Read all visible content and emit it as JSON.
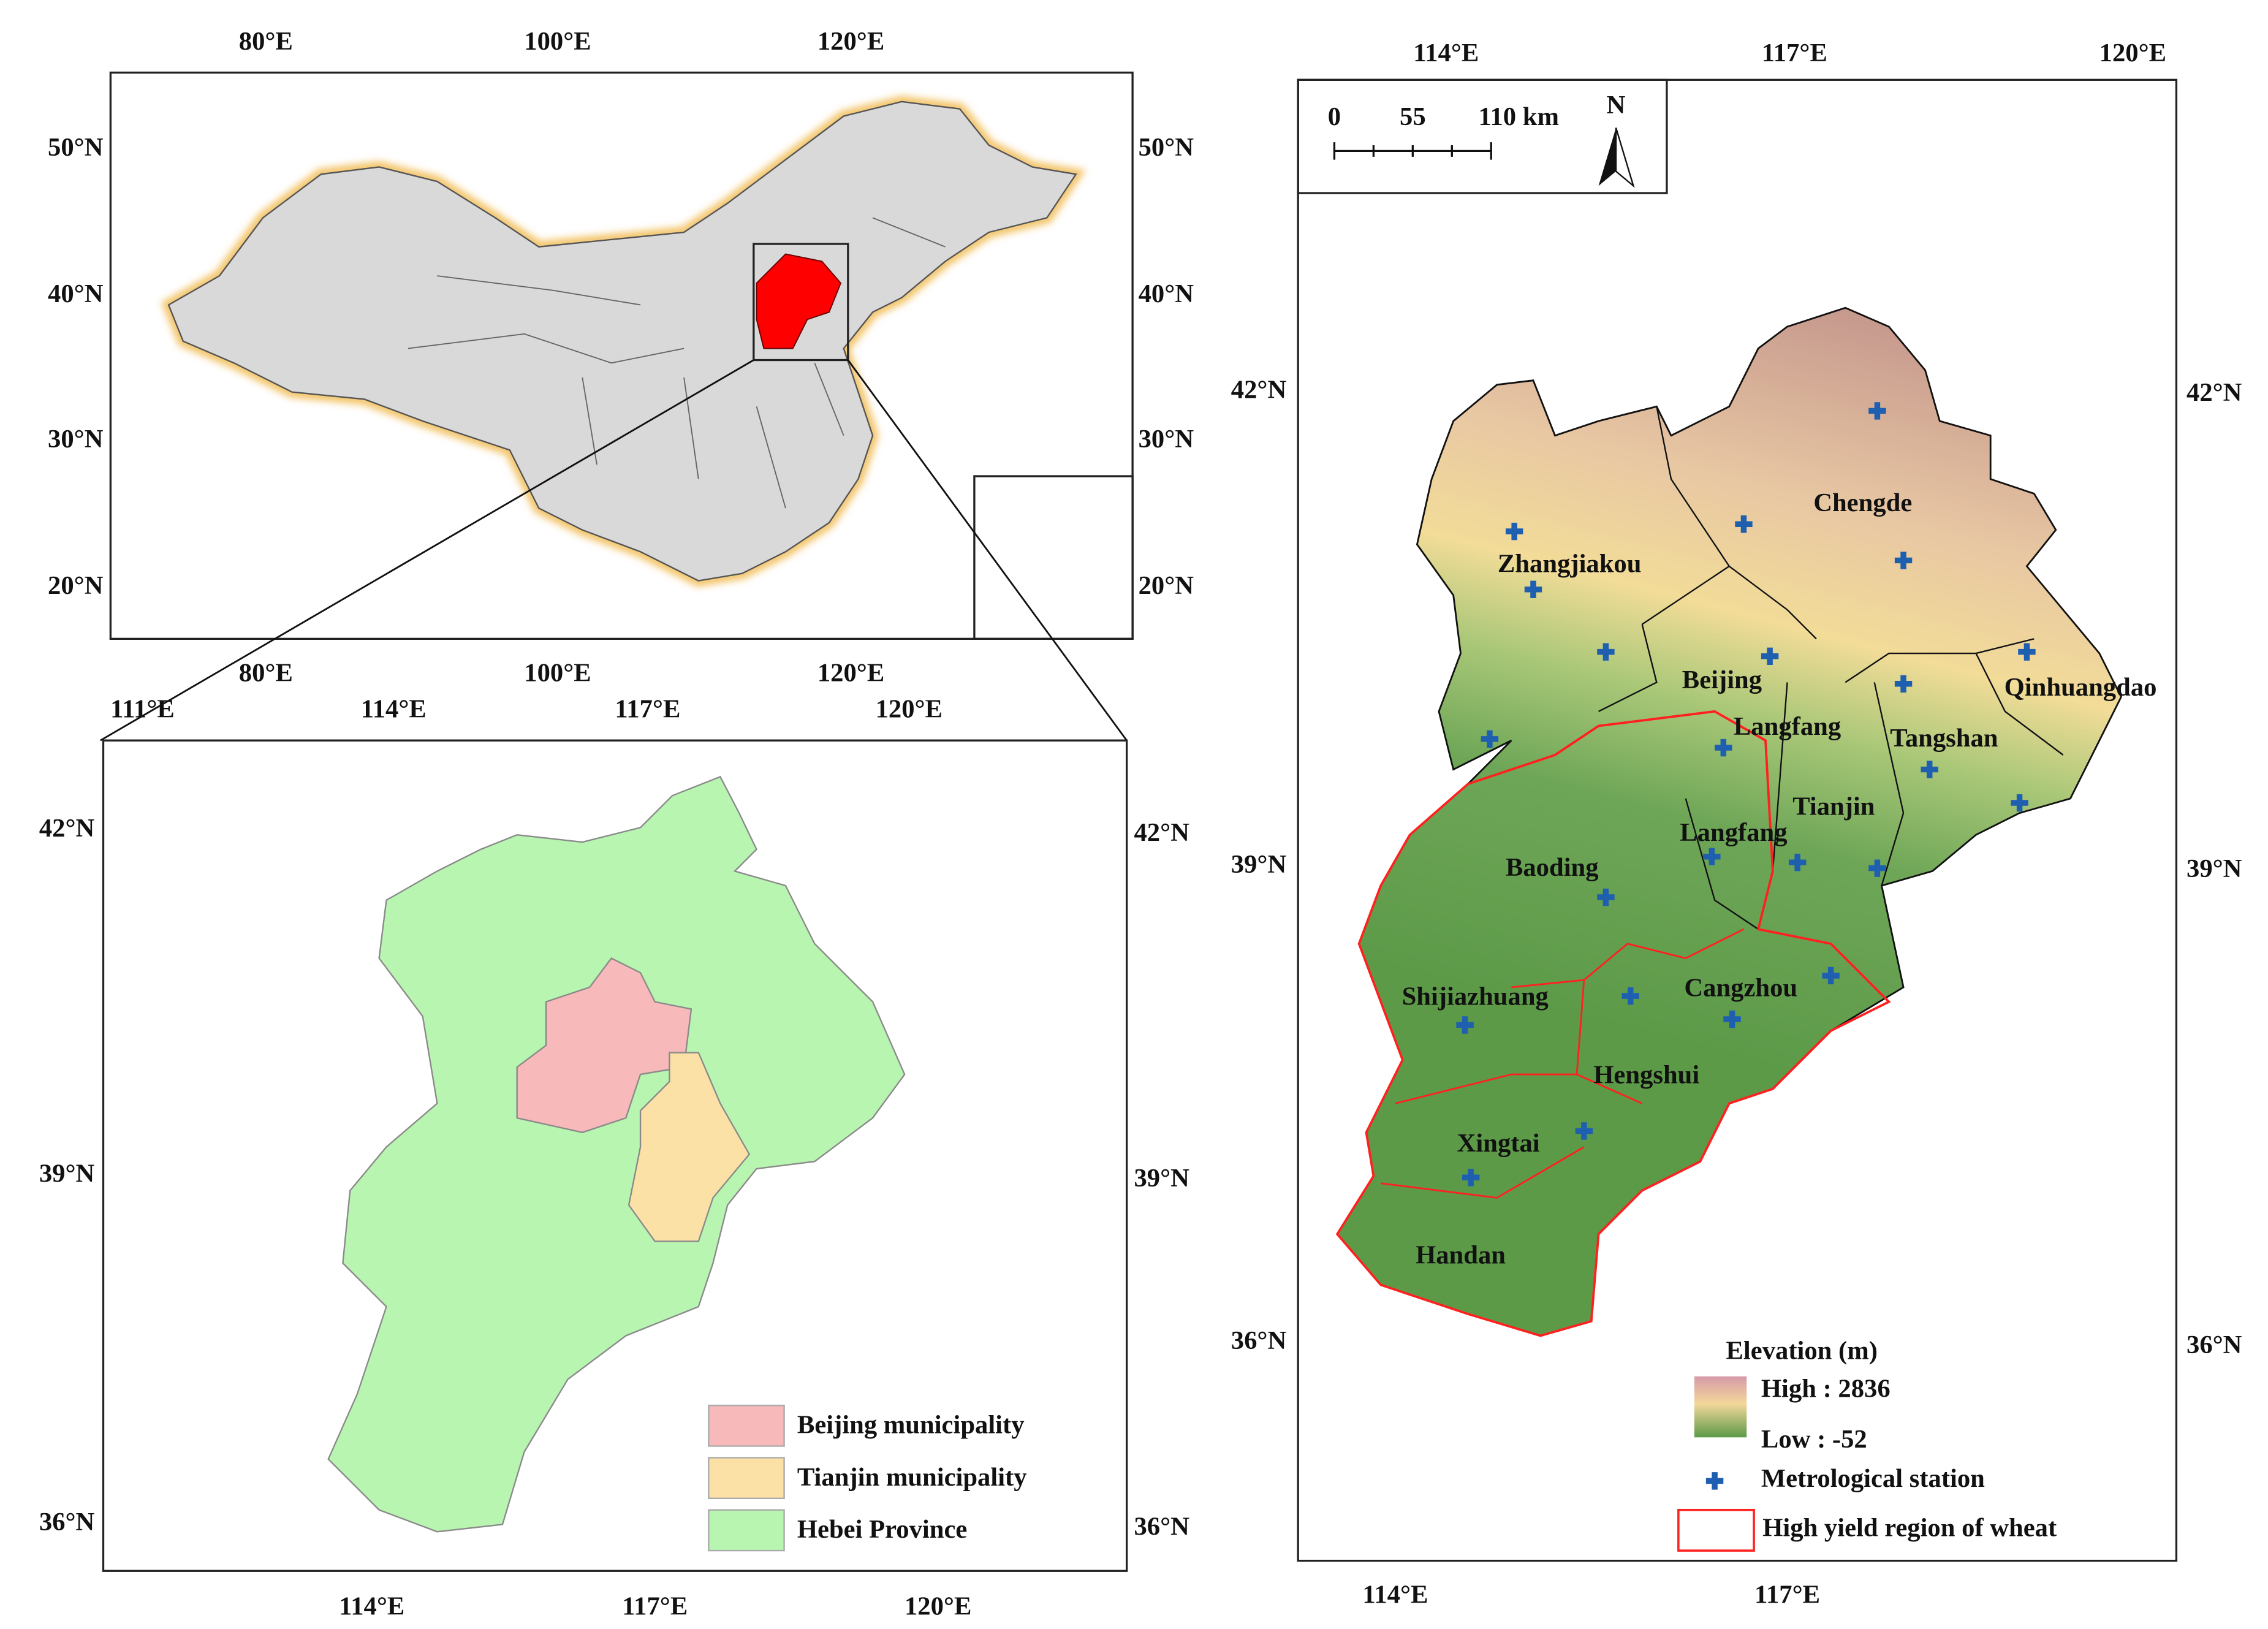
{
  "china_map": {
    "top_labels": [
      "80°E",
      "100°E",
      "120°E"
    ],
    "bottom_labels": [
      "80°E",
      "100°E",
      "120°E"
    ],
    "left_labels": [
      "50°N",
      "40°N",
      "30°N",
      "20°N"
    ],
    "right_labels": [
      "50°N",
      "40°N",
      "30°N",
      "20°N"
    ]
  },
  "region_map": {
    "top_labels": [
      "111°E",
      "114°E",
      "117°E",
      "120°E"
    ],
    "bottom_labels": [
      "114°E",
      "117°E",
      "120°E"
    ],
    "left_labels": [
      "42°N",
      "39°N",
      "36°N"
    ],
    "right_labels": [
      "42°N",
      "39°N",
      "36°N"
    ],
    "legend": [
      "Beijing municipality",
      "Tianjin municipality",
      "Hebei Province"
    ]
  },
  "elevation_map": {
    "top_labels": [
      "114°E",
      "117°E",
      "120°E"
    ],
    "bottom_labels": [
      "114°E",
      "117°E"
    ],
    "left_labels": [
      "42°N",
      "39°N",
      "36°N"
    ],
    "right_labels": [
      "42°N",
      "39°N",
      "36°N"
    ],
    "scale_bar": [
      "0",
      "55",
      "110 km"
    ],
    "north": "N",
    "cities": [
      "Zhangjiakou",
      "Chengde",
      "Beijing",
      "Qinhuangdao",
      "Langfang",
      "Tangshan",
      "Tianjin",
      "Langfang",
      "Baoding",
      "Shijiazhuang",
      "Cangzhou",
      "Hengshui",
      "Xingtai",
      "Handan"
    ],
    "legend": {
      "title": "Elevation (m)",
      "high": "High : 2836",
      "low": "Low : -52",
      "station": "Metrological station",
      "region": "High yield region of wheat"
    }
  }
}
